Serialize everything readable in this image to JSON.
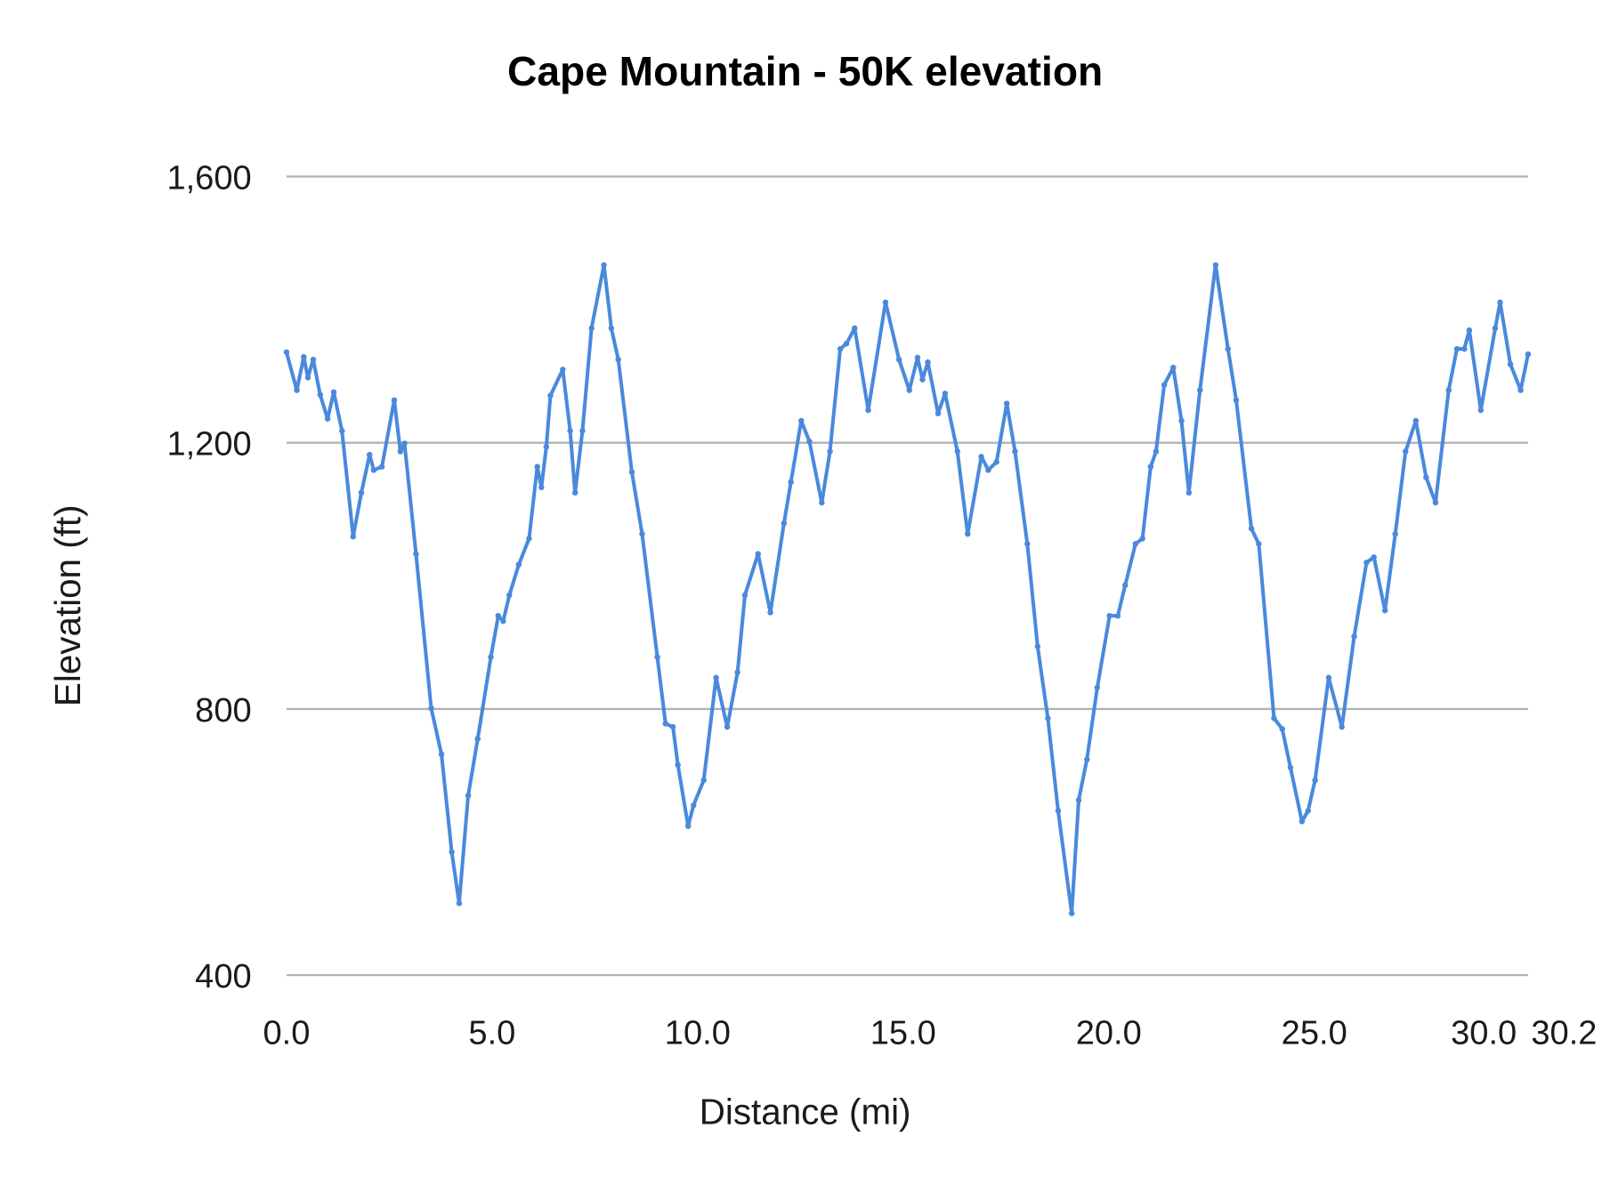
{
  "chart_data": {
    "type": "line",
    "title": "Cape Mountain - 50K elevation",
    "xlabel": "Distance (mi)",
    "ylabel": "Elevation (ft)",
    "xlim": [
      0,
      30.2
    ],
    "ylim": [
      400,
      1600
    ],
    "x_ticks": [
      "0.0",
      "5.0",
      "10.0",
      "15.0",
      "20.0",
      "25.0",
      "30.0",
      "30.2"
    ],
    "x_tick_values": [
      0,
      5,
      10,
      15,
      20,
      25,
      30,
      30.2
    ],
    "y_ticks": [
      "400",
      "800",
      "1,200",
      "1,600"
    ],
    "y_tick_values": [
      400,
      800,
      1200,
      1600
    ],
    "grid": "horizontal",
    "legend": "none",
    "line_color": "#4a89dc",
    "markers": true,
    "series": [
      {
        "x": [
          0.0,
          0.25,
          0.42,
          0.52,
          0.65,
          0.82,
          1.0,
          1.15,
          1.35,
          1.62,
          1.82,
          2.02,
          2.12,
          2.32,
          2.62,
          2.77,
          2.87,
          3.15,
          3.52,
          3.77,
          4.02,
          4.2,
          4.42,
          4.65,
          4.97,
          5.15,
          5.27,
          5.42,
          5.65,
          5.9,
          6.1,
          6.2,
          6.32,
          6.42,
          6.72,
          6.9,
          7.02,
          7.2,
          7.42,
          7.72,
          7.9,
          8.07,
          8.4,
          8.65,
          9.02,
          9.22,
          9.4,
          9.52,
          9.77,
          9.9,
          10.15,
          10.45,
          10.72,
          10.97,
          11.15,
          11.47,
          11.77,
          12.1,
          12.27,
          12.52,
          12.72,
          13.02,
          13.22,
          13.47,
          13.62,
          13.82,
          14.15,
          14.57,
          14.9,
          15.15,
          15.35,
          15.47,
          15.6,
          15.85,
          16.02,
          16.32,
          16.57,
          16.9,
          17.07,
          17.27,
          17.52,
          17.72,
          18.02,
          18.27,
          18.52,
          18.77,
          19.1,
          19.27,
          19.47,
          19.72,
          20.02,
          20.22,
          20.4,
          20.65,
          20.82,
          21.02,
          21.15,
          21.35,
          21.57,
          21.77,
          21.95,
          22.22,
          22.6,
          22.9,
          23.1,
          23.47,
          23.65,
          24.02,
          24.22,
          24.42,
          24.7,
          24.85,
          25.02,
          25.35,
          25.67,
          25.97,
          26.27,
          26.45,
          26.72,
          26.97,
          27.22,
          27.47,
          27.72,
          27.95,
          28.27,
          28.47,
          28.65,
          28.77,
          29.05,
          29.4,
          29.52,
          29.77,
          30.02,
          30.2
        ],
        "y": [
          1336,
          1279,
          1329,
          1298,
          1325,
          1272,
          1236,
          1276,
          1218,
          1059,
          1125,
          1182,
          1159,
          1164,
          1264,
          1187,
          1199,
          1033,
          801,
          732,
          585,
          508,
          670,
          755,
          878,
          940,
          932,
          971,
          1017,
          1056,
          1164,
          1133,
          1194,
          1271,
          1310,
          1218,
          1125,
          1218,
          1372,
          1467,
          1372,
          1325,
          1156,
          1063,
          878,
          778,
          773,
          716,
          624,
          655,
          693,
          847,
          773,
          855,
          971,
          1033,
          945,
          1079,
          1141,
          1233,
          1202,
          1110,
          1187,
          1341,
          1349,
          1372,
          1249,
          1411,
          1325,
          1279,
          1328,
          1295,
          1321,
          1244,
          1274,
          1187,
          1063,
          1179,
          1159,
          1171,
          1259,
          1187,
          1048,
          894,
          786,
          647,
          493,
          663,
          724,
          832,
          940,
          940,
          986,
          1048,
          1056,
          1164,
          1187,
          1287,
          1313,
          1233,
          1125,
          1279,
          1467,
          1341,
          1264,
          1071,
          1048,
          786,
          770,
          712,
          631,
          647,
          693,
          847,
          773,
          909,
          1020,
          1028,
          948,
          1063,
          1187,
          1233,
          1148,
          1110,
          1279,
          1341,
          1341,
          1369,
          1249,
          1372,
          1411,
          1318,
          1279,
          1333
        ]
      }
    ]
  }
}
